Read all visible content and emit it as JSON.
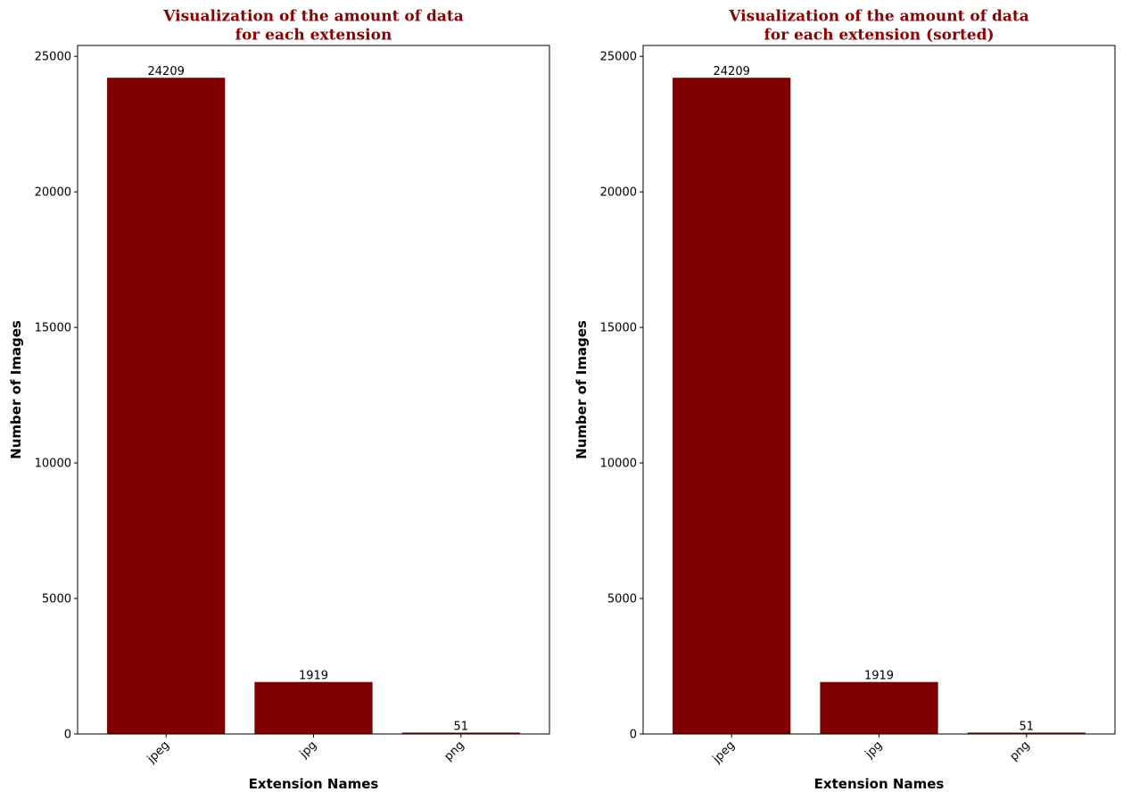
{
  "colors": {
    "bar": "#800000",
    "title": "#8b0000",
    "axis": "#000000",
    "background": "#ffffff"
  },
  "chart_data": [
    {
      "type": "bar",
      "title_lines": [
        "Visualization of the amount of data",
        "for each extension"
      ],
      "xlabel": "Extension Names",
      "ylabel": "Number of Images",
      "categories": [
        "jpeg",
        "jpg",
        "png"
      ],
      "values": [
        24209,
        1919,
        51
      ],
      "value_labels": [
        "24209",
        "1919",
        "51"
      ],
      "ylim": [
        0,
        25400
      ],
      "yticks": [
        0,
        5000,
        10000,
        15000,
        20000,
        25000
      ],
      "ytick_labels": [
        "0",
        "5000",
        "10000",
        "15000",
        "20000",
        "25000"
      ],
      "grid": false,
      "legend": "none"
    },
    {
      "type": "bar",
      "title_lines": [
        "Visualization of the amount of data",
        "for each extension (sorted)"
      ],
      "xlabel": "Extension Names",
      "ylabel": "Number of Images",
      "categories": [
        "jpeg",
        "jpg",
        "png"
      ],
      "values": [
        24209,
        1919,
        51
      ],
      "value_labels": [
        "24209",
        "1919",
        "51"
      ],
      "ylim": [
        0,
        25400
      ],
      "yticks": [
        0,
        5000,
        10000,
        15000,
        20000,
        25000
      ],
      "ytick_labels": [
        "0",
        "5000",
        "10000",
        "15000",
        "20000",
        "25000"
      ],
      "grid": false,
      "legend": "none"
    }
  ]
}
